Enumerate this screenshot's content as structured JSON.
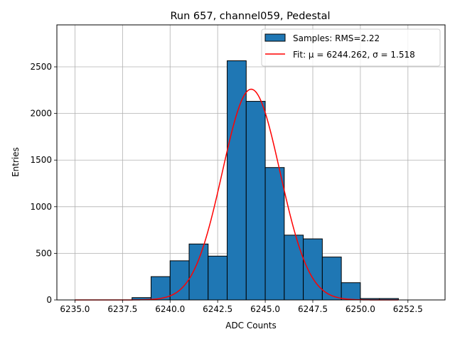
{
  "chart_data": {
    "type": "bar",
    "title": "Run 657, channel059, Pedestal",
    "xlabel": "ADC Counts",
    "ylabel": "Entries",
    "xlim": [
      6234.05,
      6254.45
    ],
    "ylim": [
      0,
      2950
    ],
    "grid": true,
    "legend_position": "top-right",
    "x_ticks": [
      6235.0,
      6237.5,
      6240.0,
      6242.5,
      6245.0,
      6247.5,
      6250.0,
      6252.5
    ],
    "x_tick_labels": [
      "6235.0",
      "6237.5",
      "6240.0",
      "6242.5",
      "6245.0",
      "6247.5",
      "6250.0",
      "6252.5"
    ],
    "y_ticks": [
      0,
      500,
      1000,
      1500,
      2000,
      2500
    ],
    "y_tick_labels": [
      "0",
      "500",
      "1000",
      "1500",
      "2000",
      "2500"
    ],
    "series": [
      {
        "name": "Samples: RMS=2.22",
        "kind": "histogram",
        "color": "#1f77b4",
        "edge_color": "#000000",
        "bin_edges": [
          6235,
          6236,
          6237,
          6238,
          6239,
          6240,
          6241,
          6242,
          6243,
          6244,
          6245,
          6246,
          6247,
          6248,
          6249,
          6250,
          6251,
          6252
        ],
        "values": [
          0,
          0,
          0,
          25,
          250,
          420,
          600,
          470,
          2565,
          2130,
          1420,
          695,
          655,
          460,
          185,
          15,
          15
        ]
      },
      {
        "name": "Fit: μ = 6244.262, σ = 1.518",
        "kind": "gaussian_fit",
        "color": "#ff0000",
        "mu": 6244.262,
        "sigma": 1.518,
        "amplitude": 2260,
        "x_range": [
          6235,
          6252
        ]
      }
    ]
  }
}
